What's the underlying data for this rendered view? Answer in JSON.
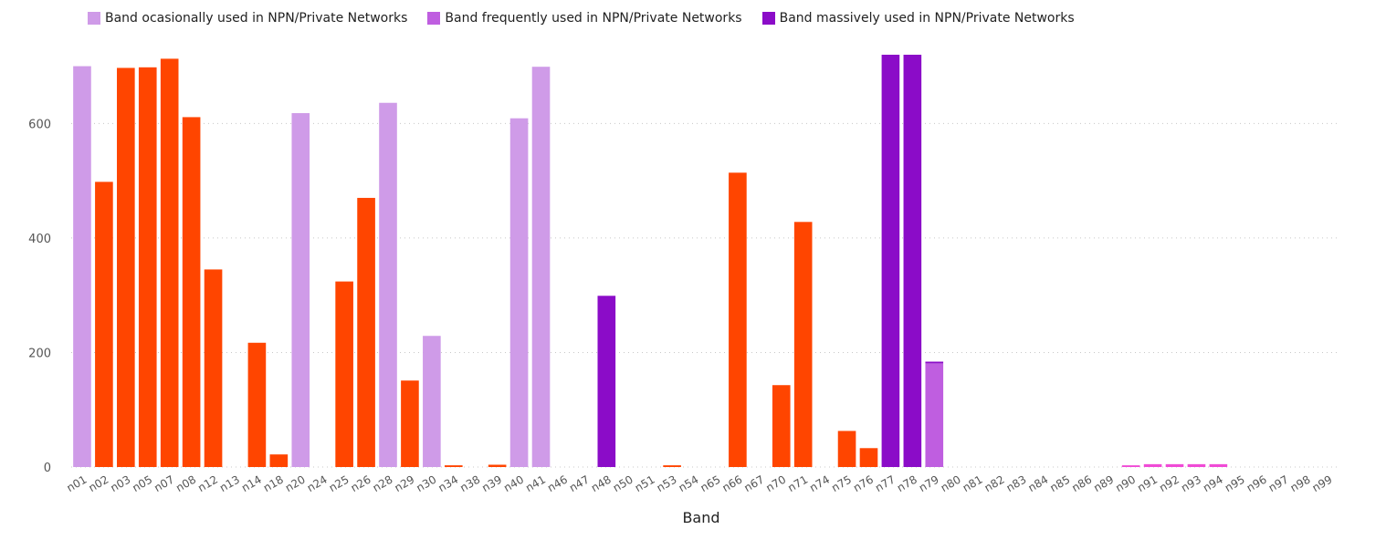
{
  "chart_data": {
    "type": "bar",
    "stacked": true,
    "xlabel": "Band",
    "ylabel": "",
    "ylim": [
      0,
      720
    ],
    "yticks": [
      0,
      200,
      400,
      600
    ],
    "grid": "horizontal dotted",
    "legend_position": "top-left",
    "categories": [
      "n01",
      "n02",
      "n03",
      "n05",
      "n07",
      "n08",
      "n12",
      "n13",
      "n14",
      "n18",
      "n20",
      "n24",
      "n25",
      "n26",
      "n28",
      "n29",
      "n30",
      "n34",
      "n38",
      "n39",
      "n40",
      "n41",
      "n46",
      "n47",
      "n48",
      "n50",
      "n51",
      "n53",
      "n54",
      "n65",
      "n66",
      "n67",
      "n70",
      "n71",
      "n74",
      "n75",
      "n76",
      "n77",
      "n78",
      "n79",
      "n80",
      "n81",
      "n82",
      "n83",
      "n84",
      "n85",
      "n86",
      "n89",
      "n90",
      "n91",
      "n92",
      "n93",
      "n94",
      "n95",
      "n96",
      "n97",
      "n98",
      "n99"
    ],
    "series": [
      {
        "name": "Band ocasionally used in NPN/Private Networks",
        "color": "#cf9be8",
        "in_legend": true,
        "values": [
          700,
          0,
          0,
          0,
          0,
          0,
          0,
          0,
          0,
          0,
          618,
          0,
          0,
          0,
          636,
          0,
          229,
          0,
          0,
          0,
          609,
          699,
          0,
          0,
          0,
          0,
          0,
          0,
          0,
          0,
          0,
          0,
          0,
          0,
          0,
          0,
          0,
          0,
          0,
          0,
          0,
          0,
          0,
          0,
          0,
          0,
          0,
          0,
          0,
          0,
          0,
          0,
          0,
          0,
          0,
          0,
          0,
          0
        ]
      },
      {
        "name": "Band frequently used in NPN/Private Networks",
        "color": "#bf5ee0",
        "in_legend": true,
        "values": [
          0,
          0,
          0,
          0,
          0,
          0,
          0,
          0,
          0,
          0,
          0,
          0,
          0,
          0,
          0,
          0,
          0,
          0,
          0,
          0,
          0,
          0,
          0,
          0,
          0,
          0,
          0,
          0,
          0,
          0,
          0,
          0,
          0,
          0,
          0,
          0,
          0,
          0,
          0,
          181,
          0,
          0,
          0,
          0,
          0,
          0,
          0,
          0,
          0,
          0,
          0,
          0,
          0,
          0,
          0,
          0,
          0,
          0
        ]
      },
      {
        "name": "Band massively used in NPN/Private Networks",
        "color": "#8b0cc8",
        "in_legend": true,
        "values": [
          0,
          0,
          0,
          0,
          0,
          0,
          0,
          0,
          0,
          0,
          0,
          0,
          0,
          0,
          0,
          0,
          0,
          0,
          0,
          0,
          0,
          0,
          0,
          0,
          299,
          0,
          0,
          0,
          0,
          0,
          0,
          0,
          0,
          0,
          0,
          0,
          0,
          720,
          720,
          3,
          0,
          0,
          0,
          0,
          0,
          0,
          0,
          0,
          0,
          0,
          0,
          0,
          0,
          0,
          0,
          0,
          0,
          0
        ]
      },
      {
        "name": "",
        "color": "#ff4500",
        "in_legend": false,
        "values": [
          0,
          498,
          697,
          698,
          713,
          611,
          345,
          0,
          217,
          22,
          0,
          0,
          324,
          470,
          0,
          151,
          0,
          3,
          0,
          4,
          0,
          0,
          0,
          0,
          0,
          0,
          0,
          3,
          0,
          0,
          514,
          0,
          143,
          428,
          0,
          63,
          33,
          0,
          0,
          0,
          0,
          0,
          0,
          0,
          0,
          0,
          0,
          0,
          0,
          0,
          0,
          0,
          0,
          0,
          0,
          0,
          0,
          0
        ]
      },
      {
        "name": "",
        "color": "#f04bd6",
        "in_legend": false,
        "values": [
          0,
          0,
          0,
          0,
          0,
          0,
          0,
          0,
          0,
          0,
          0,
          0,
          0,
          0,
          0,
          0,
          0,
          0,
          0,
          0,
          0,
          0,
          0,
          0,
          0,
          0,
          0,
          0,
          0,
          0,
          0,
          0,
          0,
          0,
          0,
          0,
          0,
          0,
          0,
          0,
          0,
          0,
          0,
          0,
          0,
          0,
          0,
          0,
          3,
          5,
          5,
          5,
          5,
          0,
          0,
          0,
          0,
          0
        ]
      }
    ]
  }
}
